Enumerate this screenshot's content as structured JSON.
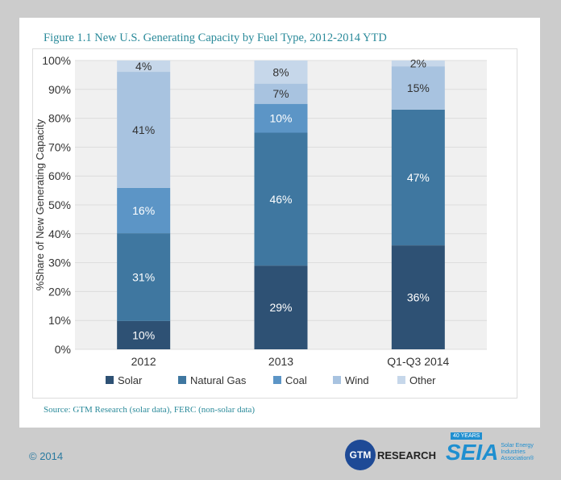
{
  "title": "Figure 1.1  New U.S. Generating Capacity by Fuel Type, 2012-2014 YTD",
  "source": "Source:  GTM Research (solar data), FERC (non-solar data)",
  "copyright": "© 2014",
  "logos": {
    "gtm": "GTM",
    "gtm_text": "RESEARCH",
    "seia": "SEIA",
    "seia_years": "40 YEARS",
    "seia_text": "Solar Energy Industries Association®"
  },
  "chart_data": {
    "type": "bar",
    "stacked": true,
    "title": "Figure 1.1  New U.S. Generating Capacity by Fuel Type, 2012-2014 YTD",
    "ylabel": "%Share of New Generating Capacity",
    "xlabel": "",
    "ylim": [
      0,
      100
    ],
    "yticks": [
      "0%",
      "10%",
      "20%",
      "30%",
      "40%",
      "50%",
      "60%",
      "70%",
      "80%",
      "90%",
      "100%"
    ],
    "grid": true,
    "legend": "bottom",
    "categories": [
      "2012",
      "2013",
      "Q1-Q3 2014"
    ],
    "series": [
      {
        "name": "Solar",
        "color": "#2e5174",
        "values": [
          10,
          29,
          36
        ]
      },
      {
        "name": "Natural Gas",
        "color": "#3f77a0",
        "values": [
          31,
          46,
          47
        ]
      },
      {
        "name": "Coal",
        "color": "#5c95c6",
        "values": [
          16,
          10,
          0
        ]
      },
      {
        "name": "Wind",
        "color": "#a8c3e0",
        "values": [
          41,
          7,
          15
        ]
      },
      {
        "name": "Other",
        "color": "#c6d7ea",
        "values": [
          4,
          8,
          2
        ]
      }
    ]
  }
}
